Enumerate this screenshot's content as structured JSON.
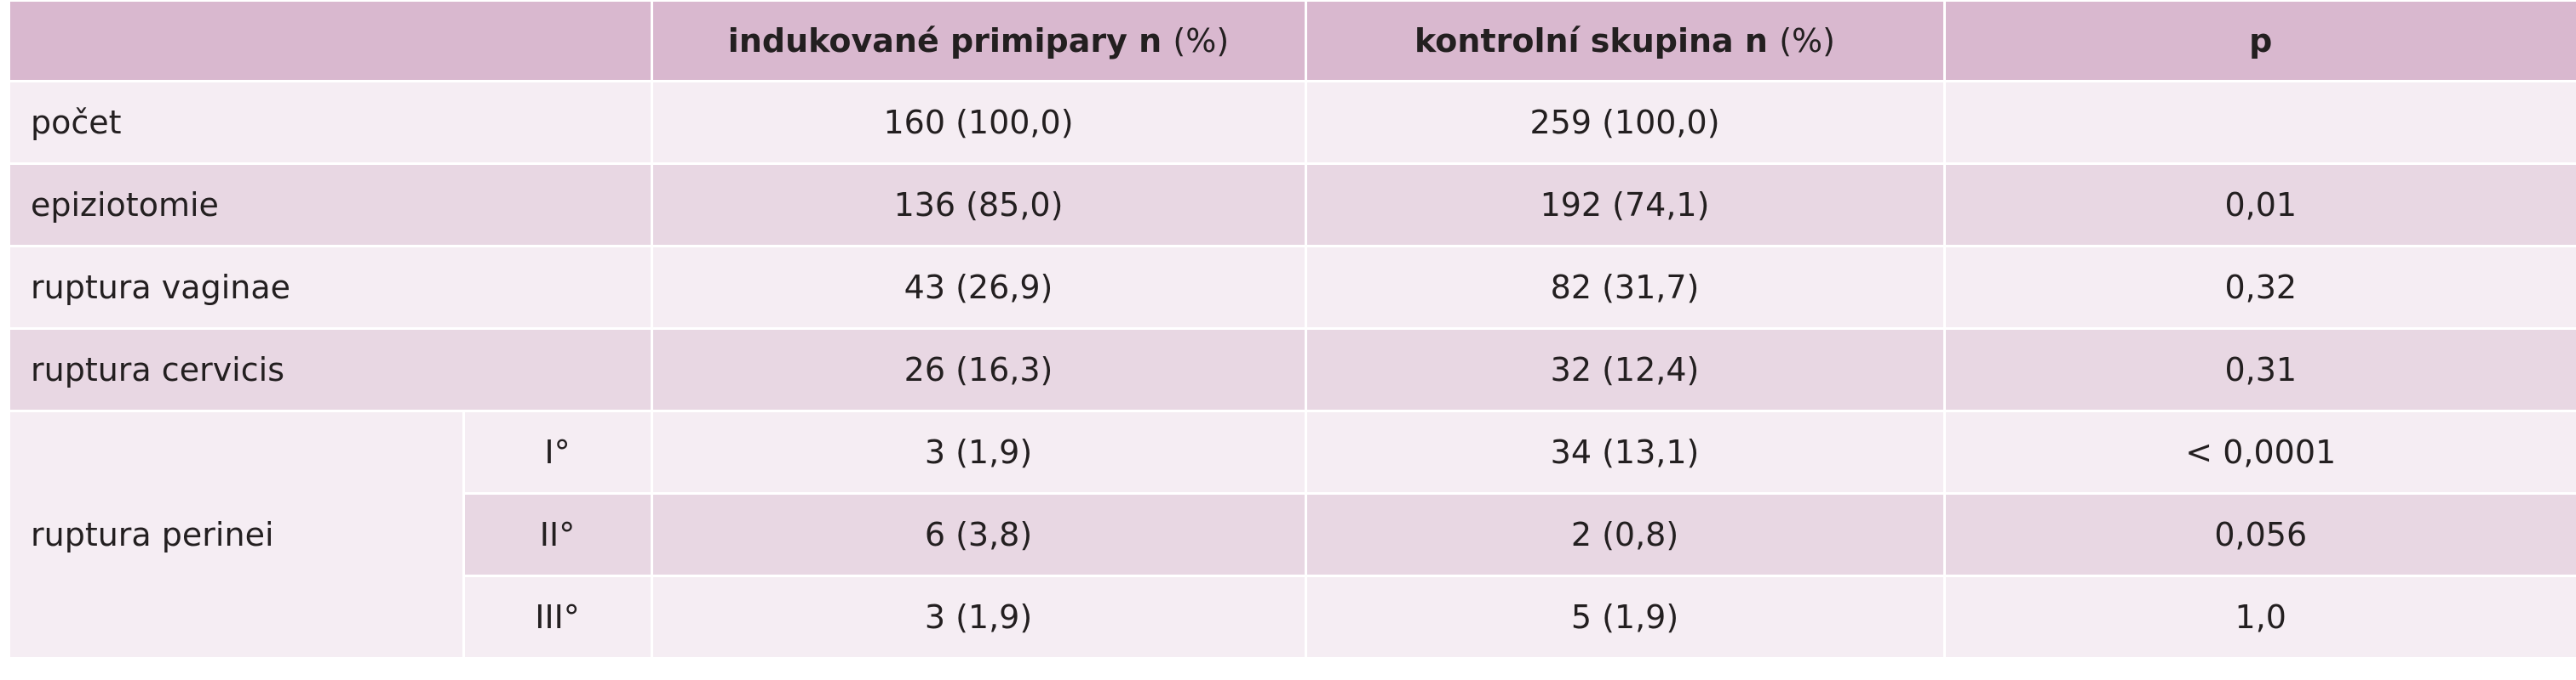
{
  "table": {
    "header": {
      "empty": "",
      "col_induced_bold": "indukované primipary n",
      "col_induced_unit": "(%)",
      "col_control_bold": "kontrolní skupina n",
      "col_control_unit": "(%)",
      "col_p": "p"
    },
    "rows": [
      {
        "label": "počet",
        "induced": "160 (100,0)",
        "control": "259 (100,0)",
        "p": ""
      },
      {
        "label": "epiziotomie",
        "induced": "136 (85,0)",
        "control": "192 (74,1)",
        "p": "0,01"
      },
      {
        "label": "ruptura vaginae",
        "induced": "43 (26,9)",
        "control": "82 (31,7)",
        "p": "0,32"
      },
      {
        "label": "ruptura cervicis",
        "induced": "26 (16,3)",
        "control": "32 (12,4)",
        "p": "0,31"
      }
    ],
    "perinei": {
      "label": "ruptura perinei",
      "sub": [
        {
          "degree": "I°",
          "induced": "3 (1,9)",
          "control": "34 (13,1)",
          "p": "< 0,0001"
        },
        {
          "degree": "II°",
          "induced": "6 (3,8)",
          "control": "2 (0,8)",
          "p": "0,056"
        },
        {
          "degree": "III°",
          "induced": "3 (1,9)",
          "control": "5 (1,9)",
          "p": "1,0"
        }
      ]
    }
  }
}
